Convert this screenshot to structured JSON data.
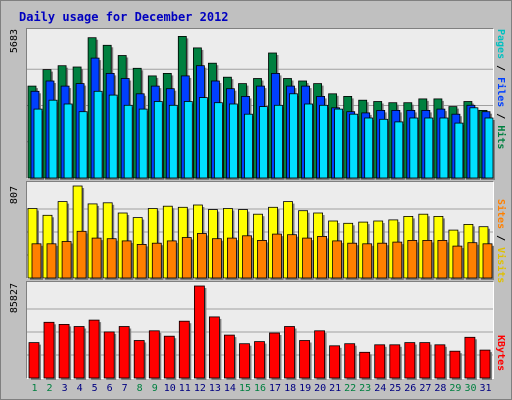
{
  "title": "Daily usage for December 2012",
  "colors": {
    "hits": "#008040",
    "files": "#0040ff",
    "pages": "#00e0ff",
    "visits": "#ffff00",
    "sites": "#ff8000",
    "kbytes": "#ff0000",
    "weekend_label": "#008040",
    "weekday_label": "#000080"
  },
  "y_max_labels": {
    "hits": "5683",
    "visits": "807",
    "kbytes": "85827"
  },
  "right_labels": {
    "pages": "Pages",
    "files": "Files",
    "hits": "Hits",
    "sites": "Sites",
    "visits": "Visits",
    "kbytes": "KBytes",
    "sep": " / "
  },
  "chart_data": [
    {
      "type": "bar",
      "title": "Daily usage for December 2012",
      "categories": [
        "1",
        "2",
        "3",
        "4",
        "5",
        "6",
        "7",
        "8",
        "9",
        "10",
        "11",
        "12",
        "13",
        "14",
        "15",
        "16",
        "17",
        "18",
        "19",
        "20",
        "21",
        "22",
        "23",
        "24",
        "25",
        "26",
        "27",
        "28",
        "29",
        "30",
        "31"
      ],
      "ylim": [
        0,
        5683
      ],
      "grid": true,
      "series": [
        {
          "name": "Hits",
          "values": [
            3600,
            4250,
            4400,
            4350,
            5500,
            5200,
            4800,
            4300,
            4000,
            4100,
            5550,
            5100,
            4500,
            3950,
            3700,
            3900,
            4900,
            3900,
            3800,
            3700,
            3300,
            3200,
            3050,
            3000,
            2950,
            2950,
            3100,
            3100,
            2800,
            3000,
            2650
          ]
        },
        {
          "name": "Files",
          "values": [
            3400,
            3800,
            3600,
            3700,
            4700,
            4100,
            3900,
            3300,
            3600,
            3500,
            4000,
            4400,
            3800,
            3500,
            3200,
            3600,
            4100,
            3600,
            3600,
            3200,
            2750,
            2600,
            2550,
            2650,
            2650,
            2650,
            2650,
            2700,
            2500,
            2850,
            2600
          ]
        },
        {
          "name": "Pages",
          "values": [
            2700,
            3050,
            2900,
            2600,
            3400,
            3250,
            2850,
            2700,
            3000,
            2850,
            3000,
            3150,
            2950,
            2900,
            2500,
            2800,
            2850,
            3300,
            2900,
            2850,
            2700,
            2500,
            2350,
            2300,
            2200,
            2350,
            2350,
            2350,
            2150,
            2750,
            2350
          ]
        }
      ]
    },
    {
      "type": "bar",
      "categories": [
        "1",
        "2",
        "3",
        "4",
        "5",
        "6",
        "7",
        "8",
        "9",
        "10",
        "11",
        "12",
        "13",
        "14",
        "15",
        "16",
        "17",
        "18",
        "19",
        "20",
        "21",
        "22",
        "23",
        "24",
        "25",
        "26",
        "27",
        "28",
        "29",
        "30",
        "31"
      ],
      "ylim": [
        0,
        807
      ],
      "grid": true,
      "series": [
        {
          "name": "Visits",
          "values": [
            610,
            550,
            670,
            807,
            650,
            660,
            570,
            530,
            610,
            630,
            620,
            640,
            600,
            610,
            600,
            560,
            620,
            670,
            590,
            570,
            500,
            480,
            490,
            500,
            510,
            540,
            560,
            540,
            420,
            470,
            450
          ]
        },
        {
          "name": "Sites",
          "values": [
            300,
            300,
            320,
            410,
            350,
            345,
            325,
            295,
            305,
            325,
            355,
            390,
            345,
            350,
            370,
            330,
            385,
            380,
            350,
            365,
            325,
            305,
            300,
            305,
            315,
            330,
            330,
            330,
            280,
            310,
            300
          ]
        }
      ]
    },
    {
      "type": "bar",
      "categories": [
        "1",
        "2",
        "3",
        "4",
        "5",
        "6",
        "7",
        "8",
        "9",
        "10",
        "11",
        "12",
        "13",
        "14",
        "15",
        "16",
        "17",
        "18",
        "19",
        "20",
        "21",
        "22",
        "23",
        "24",
        "25",
        "26",
        "27",
        "28",
        "29",
        "30",
        "31"
      ],
      "ylim": [
        0,
        85827
      ],
      "grid": true,
      "series": [
        {
          "name": "KBytes",
          "values": [
            33000,
            52000,
            50000,
            48000,
            54000,
            43000,
            48000,
            35000,
            44000,
            39000,
            53000,
            85827,
            57000,
            40000,
            32000,
            34000,
            42000,
            48000,
            35000,
            44000,
            30000,
            32000,
            24000,
            31000,
            31000,
            33000,
            33000,
            31000,
            25000,
            38000,
            26000
          ]
        }
      ]
    }
  ]
}
